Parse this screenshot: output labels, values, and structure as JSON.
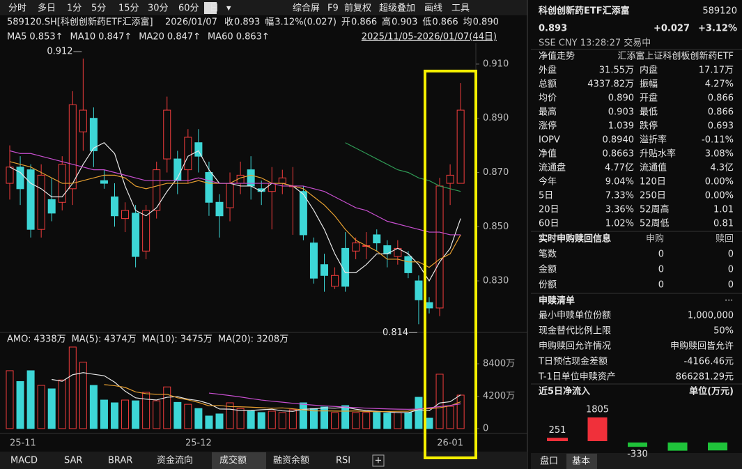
{
  "toolbar": {
    "periods": [
      "分时",
      "多日",
      "1分",
      "5分",
      "15分",
      "30分",
      "60分",
      "日",
      "▾"
    ],
    "tools": [
      "综合屏",
      "F9",
      "前复权",
      "超级叠加",
      "画线",
      "工具"
    ]
  },
  "info_bar": {
    "code": "589120.SH[科创创新药ETF汇添富]",
    "date": "2026/01/07",
    "items": [
      {
        "label": "收",
        "value": "0.893",
        "color": "#f23d3d"
      },
      {
        "label": "幅",
        "value": "3.12%(0.027)",
        "color": "#f23d3d"
      },
      {
        "label": "开",
        "value": "0.866",
        "color": "#e6e6e6"
      },
      {
        "label": "高",
        "value": "0.903",
        "color": "#f23d3d"
      },
      {
        "label": "低",
        "value": "0.866",
        "color": "#e6e6e6"
      },
      {
        "label": "均",
        "value": "0.890",
        "color": "#f23d3d"
      }
    ]
  },
  "range": "2025/11/05-2026/01/07(44日)",
  "kline": {
    "dates": [
      "25-11",
      null,
      null,
      null,
      null,
      null,
      null,
      null,
      null,
      null,
      null,
      null,
      null,
      null,
      null,
      null,
      null,
      null,
      "25-12",
      null,
      null,
      null,
      null,
      null,
      null,
      null,
      null,
      null,
      null,
      null,
      null,
      null,
      null,
      null,
      null,
      null,
      null,
      null,
      null,
      null,
      null,
      null,
      "26-01",
      null
    ],
    "candles": [
      [
        0.866,
        0.872,
        0.88,
        0.86
      ],
      [
        0.872,
        0.864,
        0.876,
        0.858
      ],
      [
        0.871,
        0.849,
        0.873,
        0.846
      ],
      [
        0.849,
        0.869,
        0.873,
        0.846
      ],
      [
        0.86,
        0.855,
        0.868,
        0.852
      ],
      [
        0.859,
        0.873,
        0.876,
        0.856
      ],
      [
        0.864,
        0.895,
        0.9,
        0.858
      ],
      [
        0.885,
        0.893,
        0.912,
        0.878
      ],
      [
        0.89,
        0.878,
        0.894,
        0.872
      ],
      [
        0.867,
        0.866,
        0.871,
        0.864
      ],
      [
        0.861,
        0.854,
        0.866,
        0.85
      ],
      [
        0.853,
        0.856,
        0.859,
        0.848
      ],
      [
        0.855,
        0.839,
        0.858,
        0.835
      ],
      [
        0.841,
        0.856,
        0.858,
        0.838
      ],
      [
        0.856,
        0.871,
        0.874,
        0.853
      ],
      [
        0.875,
        0.893,
        0.898,
        0.87
      ],
      [
        0.875,
        0.867,
        0.878,
        0.862
      ],
      [
        0.871,
        0.883,
        0.886,
        0.866
      ],
      [
        0.881,
        0.876,
        0.886,
        0.87
      ],
      [
        0.87,
        0.859,
        0.874,
        0.854
      ],
      [
        0.859,
        0.854,
        0.862,
        0.846
      ],
      [
        0.857,
        0.866,
        0.87,
        0.852
      ],
      [
        0.866,
        0.869,
        0.874,
        0.862
      ],
      [
        0.871,
        0.865,
        0.876,
        0.86
      ],
      [
        0.864,
        0.863,
        0.867,
        0.858
      ],
      [
        0.863,
        0.866,
        0.872,
        0.849
      ],
      [
        0.866,
        0.868,
        0.871,
        0.862
      ],
      [
        0.865,
        0.865,
        0.872,
        0.847
      ],
      [
        0.863,
        0.847,
        0.865,
        0.845
      ],
      [
        0.844,
        0.831,
        0.846,
        0.829
      ],
      [
        0.836,
        0.832,
        0.84,
        0.826
      ],
      [
        0.828,
        0.832,
        0.835,
        0.827
      ],
      [
        0.842,
        0.828,
        0.848,
        0.826
      ],
      [
        0.841,
        0.844,
        0.846,
        0.838
      ],
      [
        0.843,
        0.843,
        0.848,
        0.838
      ],
      [
        0.847,
        0.844,
        0.849,
        0.841
      ],
      [
        0.843,
        0.84,
        0.845,
        0.835
      ],
      [
        0.839,
        0.842,
        0.845,
        0.836
      ],
      [
        0.839,
        0.833,
        0.841,
        0.831
      ],
      [
        0.83,
        0.823,
        0.832,
        0.814
      ],
      [
        0.822,
        0.82,
        0.824,
        0.818
      ],
      [
        0.82,
        0.865,
        0.868,
        0.817
      ],
      [
        0.866,
        0.869,
        0.873,
        0.858
      ],
      [
        0.866,
        0.893,
        0.903,
        0.866
      ]
    ],
    "ma": [
      {
        "name": "MA5",
        "value_label": "0.853↑",
        "color": "#e8e8e8",
        "values": [
          0.872,
          0.87,
          0.866,
          0.864,
          0.861,
          0.861,
          0.866,
          0.873,
          0.879,
          0.881,
          0.877,
          0.865,
          0.856,
          0.854,
          0.857,
          0.863,
          0.868,
          0.876,
          0.878,
          0.871,
          0.866,
          0.866,
          0.865,
          0.865,
          0.863,
          0.866,
          0.866,
          0.865,
          0.862,
          0.856,
          0.849,
          0.84,
          0.833,
          0.833,
          0.836,
          0.84,
          0.84,
          0.842,
          0.84,
          0.836,
          0.83,
          0.837,
          0.842,
          0.853
        ]
      },
      {
        "name": "MA10",
        "value_label": "0.847↑",
        "color": "#e8a030",
        "values": [
          0.874,
          0.873,
          0.872,
          0.87,
          0.868,
          0.866,
          0.866,
          0.867,
          0.868,
          0.869,
          0.869,
          0.868,
          0.865,
          0.864,
          0.865,
          0.866,
          0.866,
          0.866,
          0.867,
          0.866,
          0.866,
          0.866,
          0.868,
          0.869,
          0.868,
          0.866,
          0.866,
          0.865,
          0.864,
          0.861,
          0.858,
          0.854,
          0.849,
          0.845,
          0.843,
          0.841,
          0.838,
          0.838,
          0.837,
          0.837,
          0.835,
          0.838,
          0.84,
          0.847
        ]
      },
      {
        "name": "MA20",
        "value_label": "0.847↑",
        "color": "#c84fd0",
        "values": [
          0.878,
          0.877,
          0.877,
          0.876,
          0.875,
          0.874,
          0.873,
          0.872,
          0.871,
          0.871,
          0.87,
          0.869,
          0.868,
          0.867,
          0.867,
          0.867,
          0.867,
          0.867,
          0.868,
          0.867,
          0.866,
          0.866,
          0.866,
          0.866,
          0.866,
          0.866,
          0.865,
          0.865,
          0.865,
          0.864,
          0.863,
          0.861,
          0.859,
          0.857,
          0.856,
          0.854,
          0.852,
          0.851,
          0.85,
          0.849,
          0.848,
          0.848,
          0.847,
          0.847
        ]
      },
      {
        "name": "MA60",
        "value_label": "0.863↑",
        "color": "#2f9a55",
        "values": [
          null,
          null,
          null,
          null,
          null,
          null,
          null,
          null,
          null,
          null,
          null,
          null,
          null,
          null,
          null,
          null,
          null,
          null,
          null,
          null,
          null,
          null,
          null,
          null,
          null,
          null,
          null,
          null,
          null,
          null,
          null,
          null,
          0.881,
          0.879,
          0.877,
          0.875,
          0.873,
          0.871,
          0.87,
          0.868,
          0.867,
          0.865,
          0.864,
          0.863
        ]
      }
    ],
    "ylim": [
      0.8115,
      0.9177
    ],
    "yticks": [
      {
        "value": 0.91,
        "label": "0.910"
      },
      {
        "value": 0.89,
        "label": "0.890"
      },
      {
        "value": 0.87,
        "label": "0.870"
      },
      {
        "value": 0.85,
        "label": "0.850"
      },
      {
        "value": 0.83,
        "label": "0.830"
      }
    ],
    "annotations": [
      {
        "label": "0.912",
        "value": 0.912,
        "kind": "high"
      },
      {
        "label": "0.814",
        "value": 0.814,
        "kind": "low"
      }
    ]
  },
  "amount": {
    "legend": [
      {
        "label": "AMO:",
        "value": "4338万",
        "color": "#e8e8e8"
      },
      {
        "label": "MA(5):",
        "value": "4374万",
        "color": "#e8e8e8"
      },
      {
        "label": "MA(10):",
        "value": "3475万",
        "color": "#e8a030"
      },
      {
        "label": "MA(20):",
        "value": "3208万",
        "color": "#c84fd0"
      }
    ],
    "values": [
      7500,
      6100,
      7500,
      5600,
      5150,
      6300,
      10570,
      8600,
      5600,
      3700,
      3340,
      3700,
      3600,
      4700,
      3600,
      5400,
      3400,
      3150,
      2600,
      1630,
      1900,
      3340,
      2600,
      2260,
      2080,
      2260,
      2080,
      2440,
      3340,
      2600,
      2800,
      2080,
      2980,
      2080,
      2080,
      2080,
      2000,
      2080,
      2080,
      4060,
      1350,
      7050,
      2890,
      4338
    ],
    "ma": [
      {
        "name": "MA(5)",
        "color": "#e8e8e8",
        "values": [
          null,
          null,
          null,
          null,
          6370,
          6130,
          6980,
          7250,
          7040,
          6850,
          6020,
          4850,
          3990,
          3810,
          3710,
          4060,
          4140,
          3810,
          3630,
          3230,
          2540,
          2520,
          2330,
          2350,
          2440,
          2510,
          2300,
          2230,
          2500,
          2560,
          2690,
          2650,
          2760,
          2510,
          2340,
          2240,
          2170,
          2060,
          2060,
          2450,
          2310,
          3320,
          3480,
          4374
        ]
      },
      {
        "name": "MA(10)",
        "color": "#e8a030",
        "values": [
          null,
          null,
          null,
          null,
          null,
          null,
          null,
          null,
          null,
          5700,
          5560,
          5340,
          4760,
          4520,
          4450,
          4440,
          3990,
          3720,
          3390,
          2950,
          3000,
          2850,
          2820,
          2780,
          2710,
          2640,
          2680,
          2570,
          2420,
          2290,
          2300,
          2270,
          2260,
          2280,
          2220,
          2180,
          2220,
          2240,
          2260,
          2550,
          2580,
          2700,
          2950,
          3475
        ]
      },
      {
        "name": "MA(20)",
        "color": "#c84fd0",
        "values": [
          null,
          null,
          null,
          null,
          null,
          null,
          null,
          null,
          null,
          null,
          null,
          null,
          null,
          null,
          null,
          null,
          null,
          null,
          null,
          4600,
          4450,
          4280,
          4100,
          3890,
          3700,
          3550,
          3420,
          3280,
          3150,
          3040,
          2940,
          2870,
          2790,
          2720,
          2650,
          2600,
          2550,
          2520,
          2500,
          2530,
          2700,
          2850,
          3000,
          3208
        ]
      }
    ],
    "ylim": [
      0,
      10840
    ],
    "yticks": [
      0,
      {
        "value": 4200,
        "label": "4200万"
      },
      {
        "value": 8400,
        "label": "8400万"
      }
    ]
  },
  "bottom_tabs": [
    "MACD",
    "SAR",
    "BRAR",
    "资金流向",
    "成交额",
    "融资余额",
    "RSI",
    "+"
  ],
  "quote": {
    "name": "科创创新药ETF汇添富",
    "code": "589120",
    "price": "0.893",
    "change": "+0.027",
    "change_pct": "+3.12%",
    "status": "SSE  CNY  13:28:27  交易中",
    "trend_label": "净值走势",
    "full_name": "汇添富上证科创板创新药ETF",
    "rows": [
      {
        "cells": [
          "外盘",
          "31.55万",
          "内盘",
          "17.17万"
        ],
        "colors": [
          "#f23d3d",
          "#1fc33a"
        ]
      },
      {
        "cells": [
          "总额",
          "4337.82万",
          "振幅",
          "4.27%"
        ],
        "colors": [
          "#e6e6e6",
          "#e6e6e6"
        ]
      },
      {
        "cells": [
          "均价",
          "0.890",
          "开盘",
          "0.866"
        ],
        "colors": [
          "#f23d3d",
          "#e6e6e6"
        ]
      },
      {
        "cells": [
          "最高",
          "0.903",
          "最低",
          "0.866"
        ],
        "colors": [
          "#f23d3d",
          "#e6e6e6"
        ]
      },
      {
        "cells": [
          "涨停",
          "1.039",
          "跌停",
          "0.693"
        ],
        "colors": [
          "#f23d3d",
          "#1fc33a"
        ]
      },
      {
        "cells": [
          "IOPV",
          "0.8940",
          "溢折率",
          "-0.11%"
        ],
        "colors": [
          "#e6e6e6",
          "#1fc33a"
        ]
      },
      {
        "cells": [
          "净值",
          "0.8663",
          "升贴水率",
          "3.08%"
        ],
        "colors": [
          "#f23d3d",
          "#f23d3d"
        ]
      },
      {
        "cells": [
          "流通盘",
          "4.77亿",
          "流通值",
          "4.3亿"
        ],
        "colors": [
          "#e6e6e6",
          "#e6e6e6"
        ]
      },
      {
        "cells": [
          "今年",
          "9.04%",
          "120日",
          "0.00%"
        ],
        "colors": [
          "#f23d3d",
          "#e6e6e6"
        ]
      },
      {
        "cells": [
          "5日",
          "7.33%",
          "250日",
          "0.00%"
        ],
        "colors": [
          "#f23d3d",
          "#e6e6e6"
        ]
      },
      {
        "cells": [
          "20日",
          "3.36%",
          "52周高",
          "1.01"
        ],
        "colors": [
          "#f23d3d",
          "#e6e6e6"
        ]
      },
      {
        "cells": [
          "60日",
          "1.02%",
          "52周低",
          "0.81"
        ],
        "colors": [
          "#f23d3d",
          "#e6e6e6"
        ]
      }
    ]
  },
  "subscription": {
    "header": [
      "实时申购赎回信息",
      "申购",
      "赎回"
    ],
    "rows": [
      [
        "笔数",
        "0",
        "0"
      ],
      [
        "金额",
        "0",
        "0"
      ],
      [
        "份额",
        "0",
        "0"
      ]
    ]
  },
  "creation_list": {
    "title": "申赎清单",
    "items": [
      [
        "最小申赎单位份额",
        "1,000,000"
      ],
      [
        "现金替代比例上限",
        "50%"
      ],
      [
        "申购赎回允许情况",
        "申购赎回皆允许"
      ],
      [
        "T日预估现金差额",
        "-4166.46元"
      ],
      [
        "T-1日单位申赎资产",
        "866281.29元"
      ]
    ]
  },
  "net_inflow": {
    "title": "近5日净流入",
    "unit": "单位(万元)",
    "values": [
      251,
      1805,
      -330,
      -620,
      -600
    ],
    "value_labels": [
      "251",
      "1805",
      "-330",
      null,
      null
    ]
  },
  "panel_tabs": [
    "盘口",
    "基本"
  ]
}
